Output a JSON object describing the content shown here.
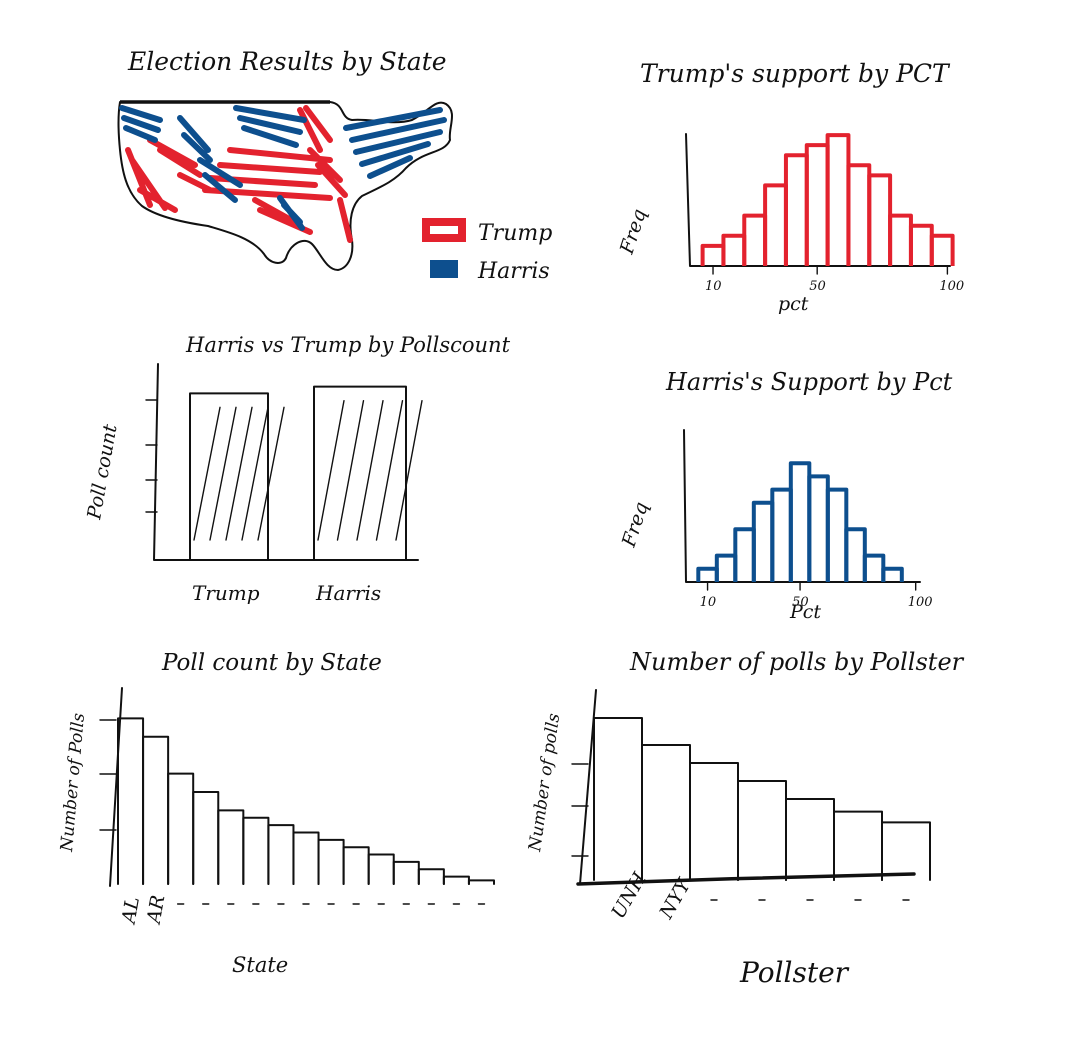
{
  "colors": {
    "trump": "#e3222e",
    "harris": "#0d4f8e",
    "ink": "#111111"
  },
  "chart_data": [
    {
      "type": "map",
      "title": "Election Results by State",
      "legend": [
        {
          "name": "Trump",
          "color": "#e3222e"
        },
        {
          "name": "Harris",
          "color": "#0d4f8e"
        }
      ]
    },
    {
      "type": "bar",
      "title": "Trump's support by PCT",
      "xlabel": "pct",
      "ylabel": "Freq",
      "xticks": [
        "10",
        "50",
        "100"
      ],
      "x": [
        10,
        18,
        26,
        34,
        42,
        50,
        58,
        66,
        74,
        82,
        90,
        98
      ],
      "values": [
        2,
        3,
        5,
        8,
        11,
        12,
        13,
        10,
        9,
        5,
        4,
        3
      ],
      "xlim": [
        5,
        101
      ],
      "ylim": [
        0,
        14
      ],
      "color": "#e3222e"
    },
    {
      "type": "bar",
      "title": "Harris vs Trump by Pollscount",
      "ylabel": "Poll count",
      "categories": [
        "Trump",
        "Harris"
      ],
      "values": [
        5,
        5.2
      ],
      "ylim": [
        0,
        6
      ]
    },
    {
      "type": "bar",
      "title": "Harris's Support by Pct",
      "xlabel": "Pct",
      "ylabel": "Freq",
      "xticks": [
        "10",
        "50",
        "100"
      ],
      "x": [
        10,
        18,
        26,
        34,
        42,
        50,
        58,
        66,
        74,
        82,
        90
      ],
      "values": [
        1,
        2,
        4,
        6,
        7,
        9,
        8,
        7,
        4,
        2,
        1
      ],
      "xlim": [
        5,
        101
      ],
      "ylim": [
        0,
        10
      ],
      "color": "#0d4f8e"
    },
    {
      "type": "bar",
      "title": "Poll count by State",
      "xlabel": "State",
      "ylabel": "Number of Polls",
      "categories": [
        "AL",
        "AR",
        "",
        "",
        "",
        "",
        "",
        "",
        "",
        "",
        "",
        "",
        "",
        "",
        ""
      ],
      "values": [
        9.5,
        9,
        8,
        7.5,
        7,
        6.8,
        6.6,
        6.4,
        6.2,
        6.0,
        5.8,
        5.6,
        5.4,
        5.2,
        5.1
      ],
      "ylim": [
        5,
        10
      ]
    },
    {
      "type": "bar",
      "title": "Number of polls by Pollster",
      "xlabel": "Pollster",
      "ylabel": "Number of polls",
      "categories": [
        "UNH",
        "NYY",
        "",
        "",
        "",
        "",
        ""
      ],
      "values": [
        9,
        7.5,
        6.5,
        5.5,
        4.5,
        3.8,
        3.2
      ],
      "ylim": [
        0,
        10
      ]
    }
  ]
}
